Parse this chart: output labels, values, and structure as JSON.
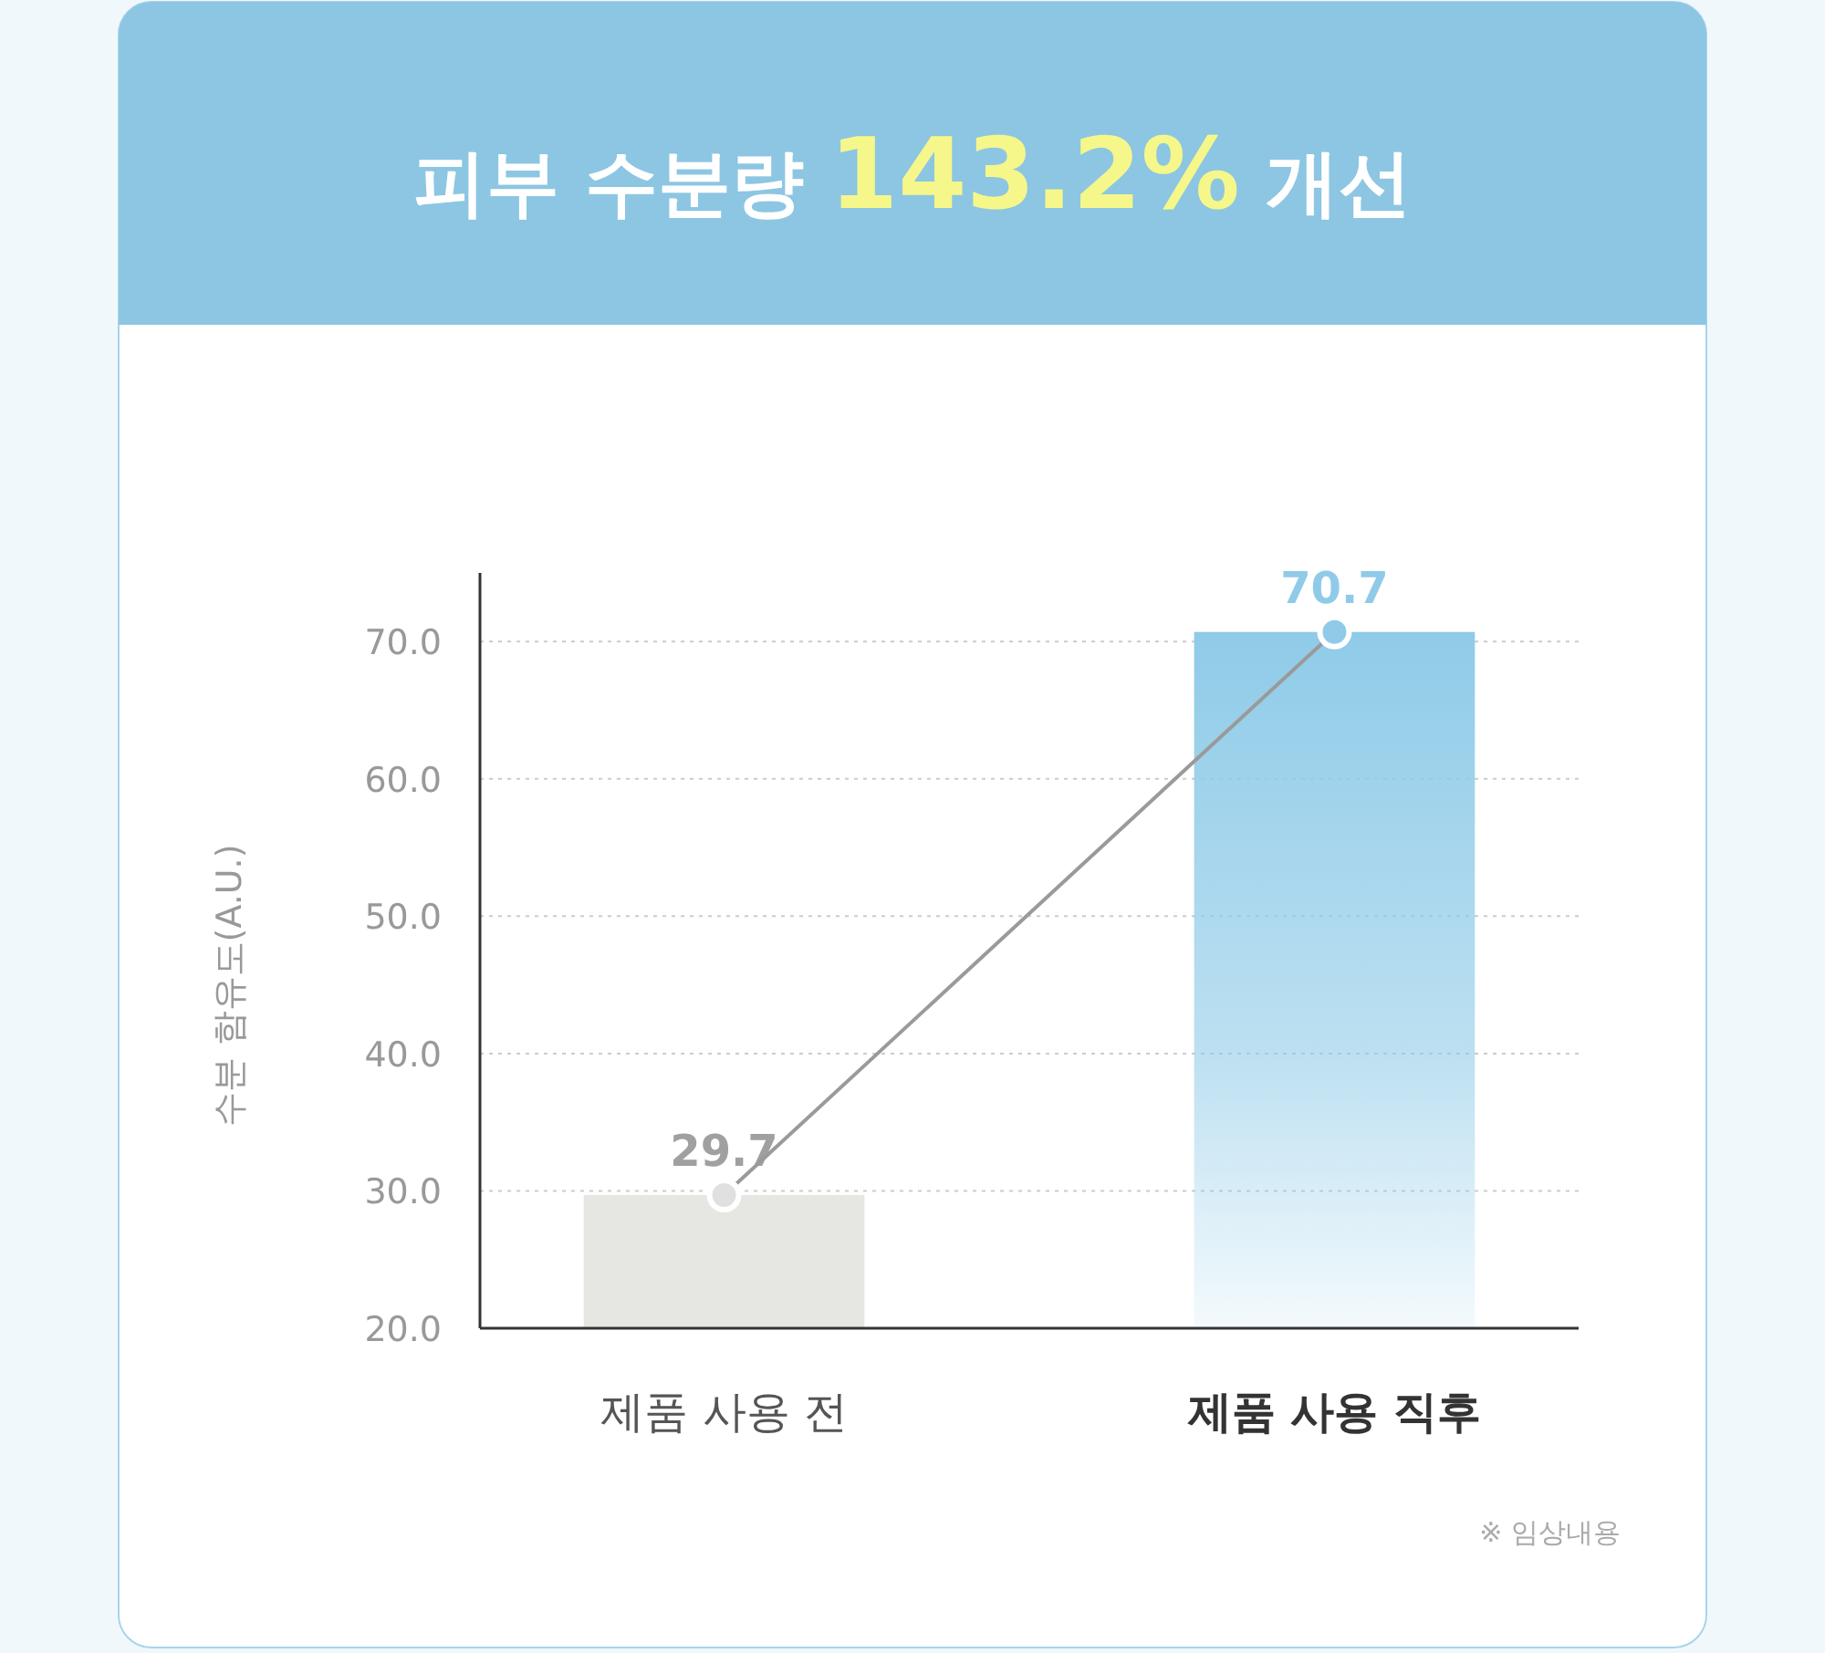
{
  "chart_data": {
    "type": "bar",
    "title": "피부 수분량 143.2% 개선",
    "categories": [
      "제품 사용 전",
      "제품 사용 직후"
    ],
    "series": [
      {
        "values": [
          29.7,
          70.7
        ],
        "colors": [
          "#e6e6e3",
          "#8fcbe8"
        ],
        "value_labels": [
          "29.7",
          "70.7"
        ]
      },
      {
        "type": "line",
        "values": [
          29.7,
          70.7
        ],
        "color": "#9a9a9a",
        "marker": "circle",
        "colors": [
          "#e0e0e0",
          "#8fcbe8"
        ]
      }
    ],
    "ylabel": "수분 함유도(A.U.)",
    "ylim": [
      20,
      75
    ],
    "yticks": [
      {
        "value": 20,
        "label": "20.0"
      },
      {
        "value": 30,
        "label": "30.0"
      },
      {
        "value": 40,
        "label": "40.0"
      },
      {
        "value": 50,
        "label": "50.0"
      },
      {
        "value": 60,
        "label": "60.0"
      },
      {
        "value": 70,
        "label": "70.0"
      }
    ],
    "grid": "y",
    "annotations": [
      "※ 임상내용"
    ]
  }
}
